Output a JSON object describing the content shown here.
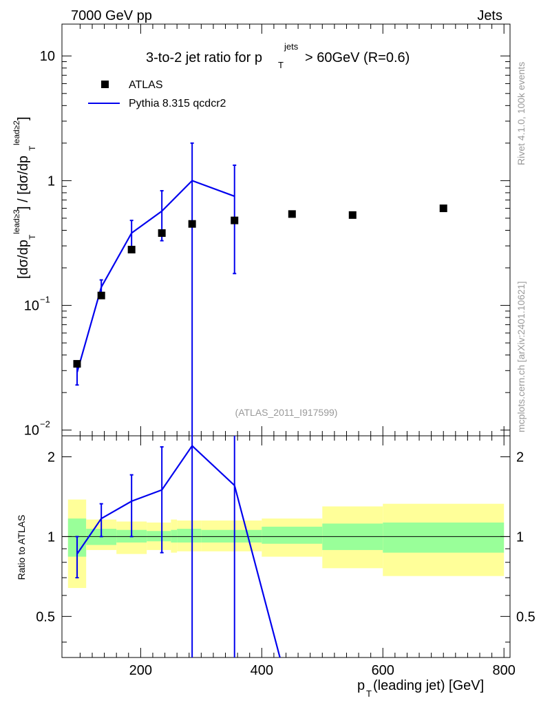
{
  "header": {
    "energy": "7000 GeV pp",
    "process": "Jets"
  },
  "side": {
    "rivet": "Rivet 4.1.0,  100k events",
    "source": "mcplots.cern.ch [arXiv:2401.10621]"
  },
  "chart_data": {
    "type": "scatter",
    "title": "3-to-2 jet ratio for p_T^jets > 60GeV (R=0.6)",
    "analysis_id": "(ATLAS_2011_I917599)",
    "xlabel": "p_T(leading jet) [GeV]",
    "ylabel_main": "[dσ/dp_T^lead≥3] / [dσ/dp_T^lead≥2]",
    "ylabel_ratio": "Ratio to ATLAS",
    "xlim": [
      70,
      810
    ],
    "ylim_main": [
      0.009,
      18
    ],
    "yscale_main": "log",
    "ylim_ratio": [
      0.35,
      2.4
    ],
    "yscale_ratio": "log",
    "x_ticks": [
      200,
      400,
      600,
      800
    ],
    "y_ticks_main": [
      0.01,
      0.1,
      1,
      10
    ],
    "y_tick_labels_main": [
      "10^-2",
      "10^-1",
      "1",
      "10"
    ],
    "y_ticks_ratio": [
      0.5,
      1,
      2
    ],
    "legend": [
      "ATLAS",
      "Pythia 8.315 qcdcr2"
    ],
    "legend_position": "top-left",
    "data": {
      "name": "ATLAS",
      "x": [
        95,
        135,
        185,
        235,
        285,
        355,
        450,
        550,
        700
      ],
      "y": [
        0.034,
        0.12,
        0.28,
        0.38,
        0.45,
        0.48,
        0.54,
        0.53,
        0.6
      ]
    },
    "mc": {
      "name": "Pythia 8.315 qcdcr2",
      "x": [
        95,
        135,
        185,
        235,
        285,
        355
      ],
      "y": [
        0.029,
        0.14,
        0.38,
        0.57,
        1.0,
        0.75
      ],
      "err_lo": [
        0.023,
        0.12,
        0.28,
        0.33,
        0.005,
        0.18
      ],
      "err_hi": [
        0.034,
        0.16,
        0.48,
        0.83,
        2.0,
        1.33
      ]
    },
    "ratio": {
      "x": [
        95,
        135,
        185,
        235,
        285,
        355,
        430
      ],
      "y": [
        0.86,
        1.17,
        1.36,
        1.5,
        2.2,
        1.56,
        0.35
      ],
      "err_lo": [
        0.7,
        1.0,
        1.0,
        0.87,
        0.3,
        0.3,
        null
      ],
      "err_hi": [
        1.0,
        1.33,
        1.71,
        2.18,
        2.5,
        2.5,
        null
      ]
    },
    "bands": {
      "edges": [
        80,
        110,
        160,
        210,
        250,
        260,
        300,
        400,
        500,
        600,
        800
      ],
      "stat_lo": [
        0.84,
        0.93,
        0.95,
        0.96,
        0.95,
        0.95,
        0.95,
        0.94,
        0.89,
        0.87
      ],
      "stat_hi": [
        1.17,
        1.07,
        1.06,
        1.05,
        1.06,
        1.07,
        1.06,
        1.09,
        1.12,
        1.13
      ],
      "total_lo": [
        0.64,
        0.89,
        0.86,
        0.89,
        0.87,
        0.88,
        0.88,
        0.84,
        0.76,
        0.71
      ],
      "total_hi": [
        1.38,
        1.16,
        1.14,
        1.13,
        1.16,
        1.15,
        1.15,
        1.17,
        1.3,
        1.33
      ]
    },
    "colors": {
      "mc_line": "#0000ee",
      "stat_band": "#99ff99",
      "total_band": "#ffff99",
      "data_marker": "#000000"
    }
  }
}
